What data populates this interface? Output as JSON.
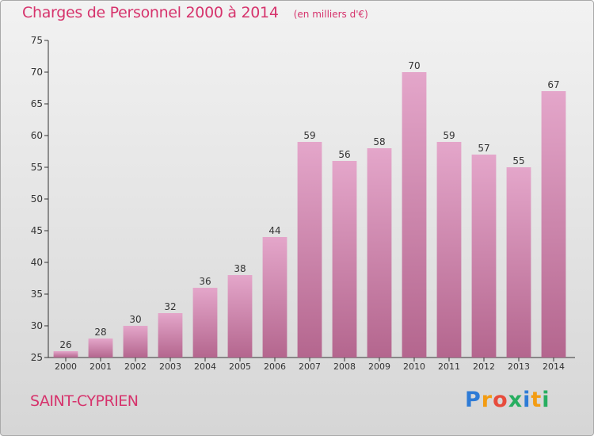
{
  "header": {
    "title": "Charges de Personnel 2000 à 2014",
    "subtitle": "(en milliers d'€)"
  },
  "footer": {
    "commune": "SAINT-CYPRIEN",
    "logo_text": "Proxiti"
  },
  "colors": {
    "title": "#d6336c",
    "bar_top": "#e4a6ca",
    "bar_bottom": "#b4668e",
    "axis": "#333333"
  },
  "chart_data": {
    "type": "bar",
    "categories": [
      "2000",
      "2001",
      "2002",
      "2003",
      "2004",
      "2005",
      "2006",
      "2007",
      "2008",
      "2009",
      "2010",
      "2011",
      "2012",
      "2013",
      "2014"
    ],
    "values": [
      26,
      28,
      30,
      32,
      36,
      38,
      44,
      59,
      56,
      58,
      70,
      59,
      57,
      55,
      67
    ],
    "ylim": [
      25,
      75
    ],
    "yticks": [
      25,
      30,
      35,
      40,
      45,
      50,
      55,
      60,
      65,
      70,
      75
    ],
    "grid": false,
    "data_labels": true
  }
}
